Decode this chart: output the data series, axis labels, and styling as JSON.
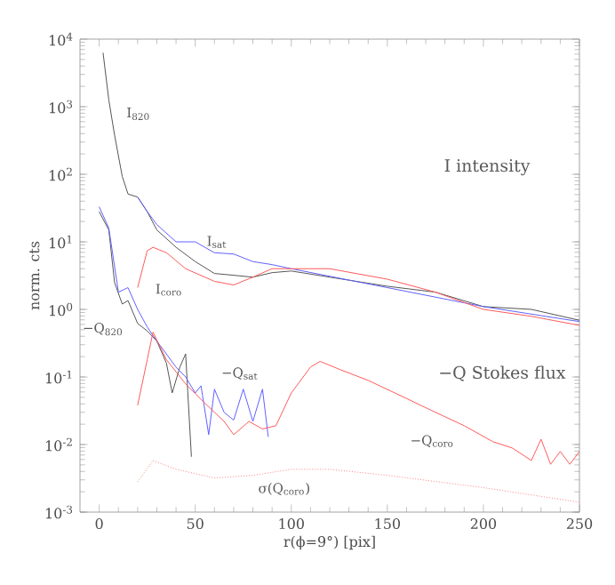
{
  "chart_data": {
    "type": "line",
    "xlabel": "r(ϕ=9°) [pix]",
    "ylabel": "norm. cts",
    "log": "y",
    "xlim": [
      -10,
      250
    ],
    "ylim": [
      0.001,
      10000
    ],
    "xticks": [
      0,
      50,
      100,
      150,
      200,
      250
    ],
    "yticks": [
      {
        "value": 0.001,
        "label": "10$^{-3}$"
      },
      {
        "value": 0.01,
        "label": "10$^{-2}$"
      },
      {
        "value": 0.1,
        "label": "10$^{-1}$"
      },
      {
        "value": 1,
        "label": "10$^{0}$"
      },
      {
        "value": 10,
        "label": "10$^{1}$"
      },
      {
        "value": 100,
        "label": "10$^{2}$"
      },
      {
        "value": 1000,
        "label": "10$^{3}$"
      },
      {
        "value": 10000,
        "label": "10$^{4}$"
      }
    ],
    "grid": false,
    "series": [
      {
        "color": "#555555",
        "x": [
          2,
          5,
          8,
          12,
          15,
          20,
          25,
          30,
          40,
          50,
          60,
          70,
          80,
          90,
          100,
          120,
          150,
          175,
          200,
          225,
          250
        ],
        "values": [
          6300,
          1260,
          380,
          93,
          51,
          46,
          28,
          15,
          8.3,
          5.1,
          3.4,
          3.2,
          3.0,
          3.5,
          3.7,
          3.0,
          2.2,
          1.8,
          1.1,
          1.0,
          0.69
        ]
      },
      {
        "color": "#6060ff",
        "x": [
          20,
          25,
          30,
          40,
          50,
          60,
          70,
          80,
          90,
          100,
          150,
          200,
          250
        ],
        "values": [
          46,
          28,
          18,
          10,
          10,
          6.9,
          6.6,
          5.1,
          4.6,
          4.0,
          2.1,
          1.1,
          0.66
        ]
      },
      {
        "color": "#ff5a5a",
        "x": [
          20,
          25,
          28,
          35,
          45,
          60,
          70,
          80,
          90,
          100,
          120,
          150,
          175,
          200,
          225,
          250
        ],
        "values": [
          2.1,
          7.4,
          8.3,
          6.9,
          4.0,
          2.6,
          2.3,
          3.0,
          4.0,
          4.0,
          4.0,
          2.8,
          1.8,
          1.0,
          0.79,
          0.58
        ]
      },
      {
        "color": "#555555",
        "x": [
          0,
          5,
          8,
          12,
          15,
          20,
          25,
          30,
          35,
          38,
          42,
          45,
          48
        ],
        "values": [
          28,
          15,
          2.5,
          1.2,
          1.35,
          0.62,
          0.48,
          0.34,
          0.16,
          0.058,
          0.14,
          0.22,
          0.0066
        ]
      },
      {
        "color": "#6060ff",
        "x": [
          0,
          5,
          10,
          15,
          20,
          25,
          30,
          40,
          45,
          50,
          53,
          57,
          60,
          65,
          70,
          75,
          80,
          85,
          88
        ],
        "values": [
          33,
          16,
          1.8,
          2.1,
          1.0,
          0.55,
          0.34,
          0.14,
          0.1,
          0.058,
          0.074,
          0.014,
          0.066,
          0.03,
          0.023,
          0.066,
          0.022,
          0.066,
          0.013
        ]
      },
      {
        "color": "#ff5a5a",
        "x": [
          20,
          25,
          28,
          35,
          45,
          55,
          65,
          70,
          78,
          85,
          92,
          100,
          110,
          115,
          125,
          140,
          160,
          175,
          190,
          205,
          215,
          225,
          230,
          235,
          240,
          245,
          250
        ],
        "values": [
          0.038,
          0.18,
          0.46,
          0.18,
          0.079,
          0.041,
          0.022,
          0.014,
          0.022,
          0.017,
          0.019,
          0.058,
          0.14,
          0.17,
          0.13,
          0.089,
          0.048,
          0.03,
          0.019,
          0.011,
          0.0089,
          0.0058,
          0.012,
          0.0051,
          0.0079,
          0.0051,
          0.0079
        ]
      },
      {
        "color": "#ff8080",
        "line_style": "dotted",
        "x": [
          20,
          28,
          40,
          60,
          80,
          100,
          120,
          150,
          200,
          250
        ],
        "values": [
          0.0028,
          0.0058,
          0.0043,
          0.0032,
          0.0035,
          0.0043,
          0.0043,
          0.0035,
          0.0023,
          0.0014
        ]
      }
    ],
    "annotations": [
      "I$_{820}$",
      "I$_{sat}$",
      "I$_{coro}$",
      "−Q$_{820}$",
      "−Q$_{sat}$",
      "−Q$_{coro}$",
      "σ(Q$_{coro}$)",
      "I intensity",
      "−Q Stokes flux"
    ]
  }
}
